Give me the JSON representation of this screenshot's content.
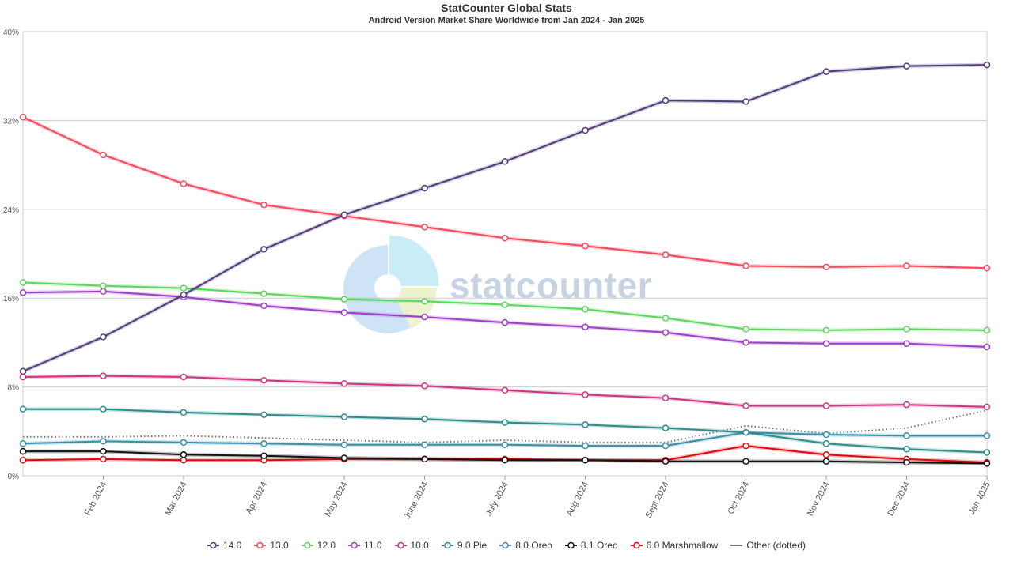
{
  "header": {
    "title": "StatCounter Global Stats",
    "subtitle": "Android Version Market Share Worldwide from Jan 2024 - Jan 2025"
  },
  "watermark": {
    "text": "statcounter"
  },
  "chart_data": {
    "type": "line",
    "x": [
      "Jan 2024",
      "Feb 2024",
      "Mar 2024",
      "Apr 2024",
      "May 2024",
      "June 2024",
      "July 2024",
      "Aug 2024",
      "Sept 2024",
      "Oct 2024",
      "Nov 2024",
      "Dec 2024",
      "Jan 2025"
    ],
    "x_tick_labels": [
      "Feb 2024",
      "Mar 2024",
      "Apr 2024",
      "May 2024",
      "June 2024",
      "July 2024",
      "Aug 2024",
      "Sept 2024",
      "Oct 2024",
      "Nov 2024",
      "Dec 2024",
      "Jan 2025"
    ],
    "y_ticks": [
      0,
      8,
      16,
      24,
      32,
      40
    ],
    "y_tick_labels": [
      "0%",
      "8%",
      "16%",
      "24%",
      "32%",
      "40%"
    ],
    "ylim": [
      0,
      40
    ],
    "grid": true,
    "legend_position": "bottom",
    "series": [
      {
        "name": "14.0",
        "color": "#4f3a78",
        "values": [
          9.4,
          12.5,
          16.3,
          20.4,
          23.5,
          25.9,
          28.3,
          31.1,
          33.8,
          33.7,
          36.4,
          36.9,
          37.0
        ]
      },
      {
        "name": "13.0",
        "color": "#f2495c",
        "values": [
          32.3,
          28.9,
          26.3,
          24.4,
          23.4,
          22.4,
          21.4,
          20.7,
          19.9,
          18.9,
          18.8,
          18.9,
          18.7
        ]
      },
      {
        "name": "12.0",
        "color": "#5cd65c",
        "values": [
          17.4,
          17.1,
          16.9,
          16.4,
          15.9,
          15.7,
          15.4,
          15.0,
          14.2,
          13.2,
          13.1,
          13.2,
          13.1
        ]
      },
      {
        "name": "11.0",
        "color": "#9b3fc6",
        "values": [
          16.5,
          16.6,
          16.1,
          15.3,
          14.7,
          14.3,
          13.8,
          13.4,
          12.9,
          12.0,
          11.9,
          11.9,
          11.6
        ]
      },
      {
        "name": "10.0",
        "color": "#c9357f",
        "values": [
          8.9,
          9.0,
          8.9,
          8.6,
          8.3,
          8.1,
          7.7,
          7.3,
          7.0,
          6.3,
          6.3,
          6.4,
          6.2
        ]
      },
      {
        "name": "9.0 Pie",
        "color": "#2e8b8b",
        "values": [
          6.0,
          6.0,
          5.7,
          5.5,
          5.3,
          5.1,
          4.8,
          4.6,
          4.3,
          3.9,
          2.9,
          2.4,
          2.1
        ]
      },
      {
        "name": "8.0 Oreo",
        "color": "#3a8ea8",
        "values": [
          2.9,
          3.1,
          3.0,
          2.9,
          2.8,
          2.8,
          2.8,
          2.7,
          2.7,
          3.9,
          3.7,
          3.6,
          3.6
        ]
      },
      {
        "name": "8.1 Oreo",
        "color": "#111111",
        "values": [
          2.2,
          2.2,
          1.9,
          1.8,
          1.6,
          1.5,
          1.4,
          1.4,
          1.3,
          1.3,
          1.3,
          1.2,
          1.1
        ]
      },
      {
        "name": "6.0 Marshmallow",
        "color": "#e0060f",
        "values": [
          1.4,
          1.5,
          1.4,
          1.4,
          1.5,
          1.5,
          1.5,
          1.4,
          1.4,
          2.7,
          1.9,
          1.5,
          1.2
        ]
      },
      {
        "name": "Other (dotted)",
        "color": "#777777",
        "dotted": true,
        "values": [
          3.5,
          3.5,
          3.6,
          3.4,
          3.2,
          3.0,
          3.2,
          3.0,
          3.0,
          4.5,
          3.8,
          4.3,
          5.9
        ]
      }
    ]
  }
}
